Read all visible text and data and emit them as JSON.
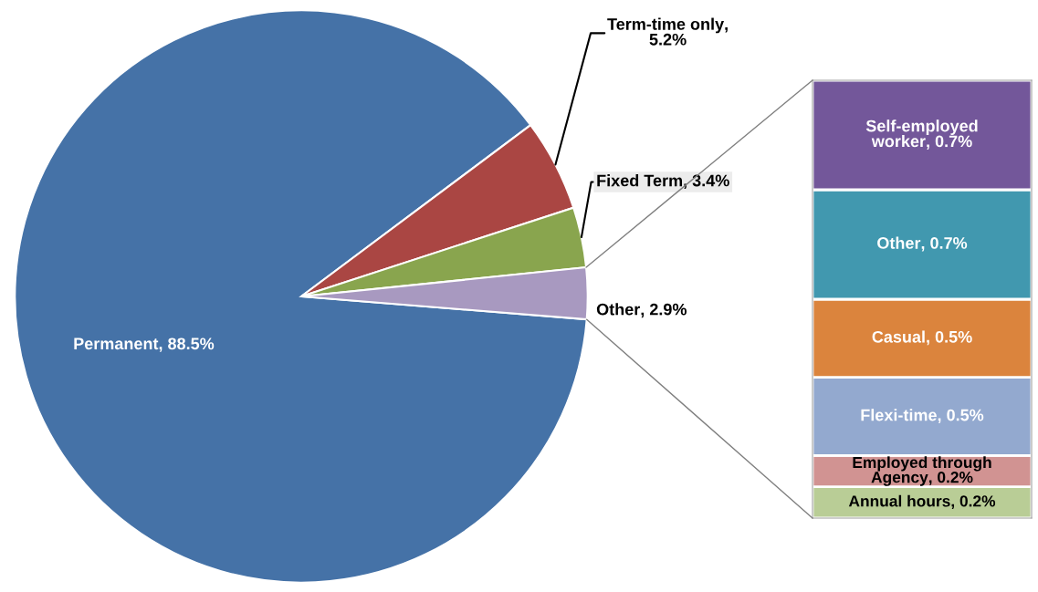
{
  "chart_data": [
    {
      "type": "pie",
      "categories": [
        "Permanent",
        "Term-time only",
        "Fixed Term",
        "Other"
      ],
      "values": [
        88.5,
        5.2,
        3.4,
        2.9
      ],
      "colors": [
        "#4572a7",
        "#aa4643",
        "#89a54e",
        "#a899c0"
      ],
      "value_labels": [
        ", 88.5%",
        ", 5.2%",
        ", 3.4%",
        ", 2.9%"
      ]
    },
    {
      "type": "bar",
      "stacked": true,
      "categories": [
        null
      ],
      "series": [
        {
          "name": "Annual hours",
          "color": "#b9cd96",
          "values": [
            0.2
          ],
          "value_labels": [
            ", 0.2%"
          ]
        },
        {
          "name": "Employed through Agency",
          "color": "#d19392",
          "values": [
            0.2
          ],
          "value_labels": [
            ", 0.2%"
          ]
        },
        {
          "name": "Flexi-time",
          "color": "#93a9cf",
          "values": [
            0.5
          ],
          "value_labels": [
            ", 0.5%"
          ]
        },
        {
          "name": "Casual",
          "color": "#db843d",
          "values": [
            0.5
          ],
          "value_labels": [
            ", 0.5%"
          ]
        },
        {
          "name": "Other",
          "color": "#4198af",
          "values": [
            0.7
          ],
          "value_labels": [
            ", 0.7%"
          ]
        },
        {
          "name": "Self-employed worker",
          "color": "#73579a",
          "values": [
            0.7
          ],
          "value_labels": [
            ", 0.7%"
          ]
        }
      ]
    }
  ]
}
